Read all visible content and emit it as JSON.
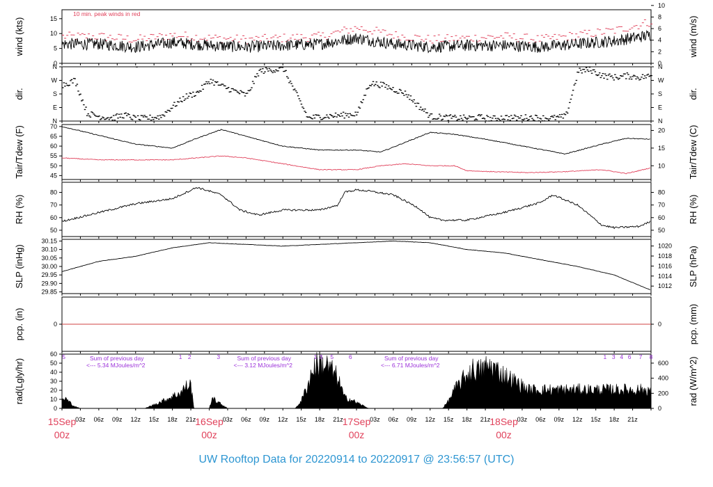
{
  "footer_title": "UW Rooftop Data for 20220914  to  20220917 @ 23:56:57  (UTC)",
  "colors": {
    "title": "#2d96d2",
    "date": "#e0405a",
    "peak": "#e0405a",
    "annot": "#9b30d9",
    "pcp": "#d04040"
  },
  "hour_ticks": [
    "03z",
    "06z",
    "09z",
    "12z",
    "15z",
    "18z",
    "21z"
  ],
  "day_labels": [
    {
      "day": "15Sep",
      "hour": "00z"
    },
    {
      "day": "16Sep",
      "hour": "00z"
    },
    {
      "day": "17Sep",
      "hour": "00z"
    },
    {
      "day": "18Sep",
      "hour": "00z"
    }
  ],
  "chart_data": [
    {
      "type": "line",
      "id": "wind",
      "ylabel_left": "wind (kts)",
      "ylabel_right": "wind (m/s)",
      "ylim": [
        0,
        18
      ],
      "left_ticks": [
        "0",
        "5",
        "10",
        "15"
      ],
      "right_ticks": [
        "0",
        "2",
        "4",
        "6",
        "8",
        "10"
      ],
      "annotation": "10 min. peak winds in red",
      "x_hours": [
        0,
        6,
        12,
        18,
        24,
        30,
        36,
        42,
        48,
        54,
        60,
        66,
        72,
        78,
        84,
        90,
        96
      ],
      "series": [
        {
          "values": [
            6.5,
            6.5,
            5.5,
            7.0,
            6.0,
            5.5,
            6.0,
            6.5,
            8.5,
            6.5,
            5.5,
            6.0,
            6.0,
            5.5,
            6.5,
            7.5,
            9.5
          ]
        },
        {
          "values": [
            9.0,
            9.0,
            8.0,
            9.5,
            8.5,
            8.0,
            8.5,
            9.0,
            12,
            9.5,
            8.0,
            8.5,
            9.0,
            8.0,
            9.5,
            11,
            14
          ]
        }
      ]
    },
    {
      "type": "scatter",
      "id": "dir",
      "ylabel_left": "dir.",
      "ylabel_right": "dir.",
      "ylim": [
        0,
        360
      ],
      "left_ticks": [
        "N",
        "E",
        "S",
        "W",
        "N"
      ],
      "right_ticks": [
        "N",
        "E",
        "S",
        "W",
        "N"
      ],
      "x_hours": [
        0,
        2,
        4,
        6,
        8,
        10,
        12,
        14,
        16,
        18,
        20,
        22,
        24,
        26,
        28,
        30,
        32,
        34,
        36,
        40,
        42,
        44,
        46,
        48,
        50,
        52,
        54,
        56,
        58,
        60,
        64,
        66,
        68,
        70,
        72,
        74,
        76,
        78,
        80,
        82,
        84,
        86,
        88,
        90,
        92,
        94,
        96
      ],
      "series": [
        {
          "values": [
            240,
            270,
            50,
            30,
            20,
            40,
            15,
            20,
            30,
            100,
            160,
            190,
            270,
            230,
            200,
            170,
            330,
            340,
            345,
            20,
            30,
            35,
            40,
            50,
            250,
            240,
            210,
            180,
            100,
            30,
            20,
            20,
            25,
            15,
            25,
            20,
            25,
            20,
            20,
            30,
            330,
            340,
            300,
            290,
            300,
            290,
            300
          ]
        }
      ]
    },
    {
      "type": "line",
      "id": "temp",
      "ylabel_left": "Tair/Tdew (F)",
      "ylabel_right": "Tair/Tdew (C)",
      "ylim": [
        43,
        71
      ],
      "left_ticks": [
        "45",
        "50",
        "55",
        "60",
        "65",
        "70"
      ],
      "right_ticks": [
        "10",
        "15",
        "20"
      ],
      "x_hours": [
        0,
        6,
        12,
        18,
        22,
        26,
        30,
        36,
        42,
        48,
        52,
        56,
        60,
        64,
        66,
        70,
        76,
        82,
        88,
        92,
        96
      ],
      "series": [
        {
          "name": "Tair",
          "values": [
            70,
            65.5,
            61,
            59,
            64,
            68.5,
            65,
            60,
            58,
            58,
            57,
            62,
            67,
            66,
            65,
            63,
            59.5,
            56,
            61,
            64,
            63.5
          ]
        },
        {
          "name": "Tdew",
          "values": [
            54,
            53,
            53,
            53,
            54,
            55,
            54,
            51,
            48,
            48,
            50,
            51,
            50,
            50,
            47.5,
            47,
            46.5,
            47,
            48,
            46,
            49
          ]
        }
      ]
    },
    {
      "type": "line",
      "id": "rh",
      "ylabel_left": "RH (%)",
      "ylabel_right": "RH (%)",
      "ylim": [
        45,
        88
      ],
      "left_ticks": [
        "50",
        "60",
        "70",
        "80"
      ],
      "right_ticks": [
        "50",
        "60",
        "70",
        "80"
      ],
      "x_hours": [
        0,
        6,
        12,
        18,
        22,
        26,
        29,
        32,
        36,
        42,
        45,
        46,
        48,
        50,
        54,
        58,
        60,
        62,
        66,
        72,
        78,
        80,
        84,
        88,
        90,
        94,
        96
      ],
      "series": [
        {
          "values": [
            57,
            64,
            71,
            75,
            84,
            78,
            66,
            62,
            66,
            66,
            70,
            80,
            82,
            81,
            78,
            68,
            60,
            58,
            58,
            64,
            72,
            78,
            70,
            54,
            52,
            53,
            57
          ]
        }
      ]
    },
    {
      "type": "line",
      "id": "slp",
      "ylabel_left": "SLP (inHg)",
      "ylabel_right": "SLP (hPa)",
      "ylim": [
        29.84,
        30.16
      ],
      "left_ticks": [
        "29.85",
        "29.90",
        "29.95",
        "30.00",
        "30.05",
        "30.10",
        "30.15"
      ],
      "right_ticks": [
        "1012",
        "1014",
        "1016",
        "1018",
        "1020"
      ],
      "x_hours": [
        0,
        6,
        12,
        18,
        24,
        30,
        36,
        42,
        48,
        54,
        60,
        66,
        72,
        78,
        84,
        90,
        96
      ],
      "series": [
        {
          "values": [
            29.97,
            30.03,
            30.06,
            30.11,
            30.14,
            30.13,
            30.12,
            30.13,
            30.14,
            30.15,
            30.14,
            30.1,
            30.08,
            30.04,
            30.0,
            29.95,
            29.86
          ]
        }
      ]
    },
    {
      "type": "line",
      "id": "pcp",
      "ylabel_left": "pcp. (in)",
      "ylabel_right": "pcp. (mm)",
      "ylim": [
        -0.1,
        0.1
      ],
      "left_ticks": [
        "0"
      ],
      "right_ticks": [
        "0"
      ],
      "x_hours": [
        0,
        96
      ],
      "series": [
        {
          "values": [
            0,
            0
          ]
        }
      ]
    },
    {
      "type": "area",
      "id": "rad",
      "ylabel_left": "rad(Lgly/hr)",
      "ylabel_right": "rad (W/m^2)",
      "ylim": [
        0,
        60
      ],
      "left_ticks": [
        "0",
        "10",
        "20",
        "30",
        "40",
        "50",
        "60"
      ],
      "right_ticks": [
        "0",
        "200",
        "400",
        "600"
      ],
      "annotations": [
        {
          "day_hour": 0,
          "line1": "Sum of previous day",
          "line2": "<--- 5.34 MJoules/m^2"
        },
        {
          "day_hour": 24,
          "line1": "Sum of previous day",
          "line2": "<--- 3.12 MJoules/m^2"
        },
        {
          "day_hour": 48,
          "line1": "Sum of previous day",
          "line2": "<--- 6.71 MJoules/m^2"
        }
      ],
      "top_marks": [
        {
          "hour": 0.3,
          "text": "5"
        },
        {
          "hour": 19.3,
          "text": "1"
        },
        {
          "hour": 20.8,
          "text": "2"
        },
        {
          "hour": 25.5,
          "text": "3"
        },
        {
          "hour": 41.3,
          "text": "1"
        },
        {
          "hour": 42.2,
          "text": "3"
        },
        {
          "hour": 44.0,
          "text": "5"
        },
        {
          "hour": 47.0,
          "text": "6"
        },
        {
          "hour": 88.5,
          "text": "1"
        },
        {
          "hour": 89.9,
          "text": "3"
        },
        {
          "hour": 91.2,
          "text": "4"
        },
        {
          "hour": 92.5,
          "text": "6"
        },
        {
          "hour": 94.3,
          "text": "7"
        },
        {
          "hour": 96.0,
          "text": "8"
        }
      ],
      "x_hours": [
        0,
        0.5,
        1,
        2,
        3,
        13.5,
        15,
        17,
        18.5,
        19.5,
        20,
        21,
        21.5,
        24,
        24.5,
        25,
        26.5,
        27,
        38,
        39,
        40,
        41,
        42,
        43,
        44,
        45,
        46,
        47,
        48,
        49.5,
        50,
        62,
        63,
        64,
        66,
        67,
        68,
        69,
        70,
        71,
        72,
        73,
        74,
        75,
        76
      ],
      "series": [
        {
          "values": [
            10,
            14,
            10,
            3,
            0,
            0,
            5,
            12,
            18,
            22,
            28,
            32,
            0,
            0,
            15,
            10,
            3,
            0,
            0,
            10,
            30,
            55,
            60,
            58,
            50,
            40,
            15,
            12,
            8,
            2,
            0,
            0,
            10,
            25,
            45,
            52,
            50,
            55,
            56,
            50,
            45,
            40,
            35,
            30,
            25
          ]
        }
      ]
    }
  ]
}
